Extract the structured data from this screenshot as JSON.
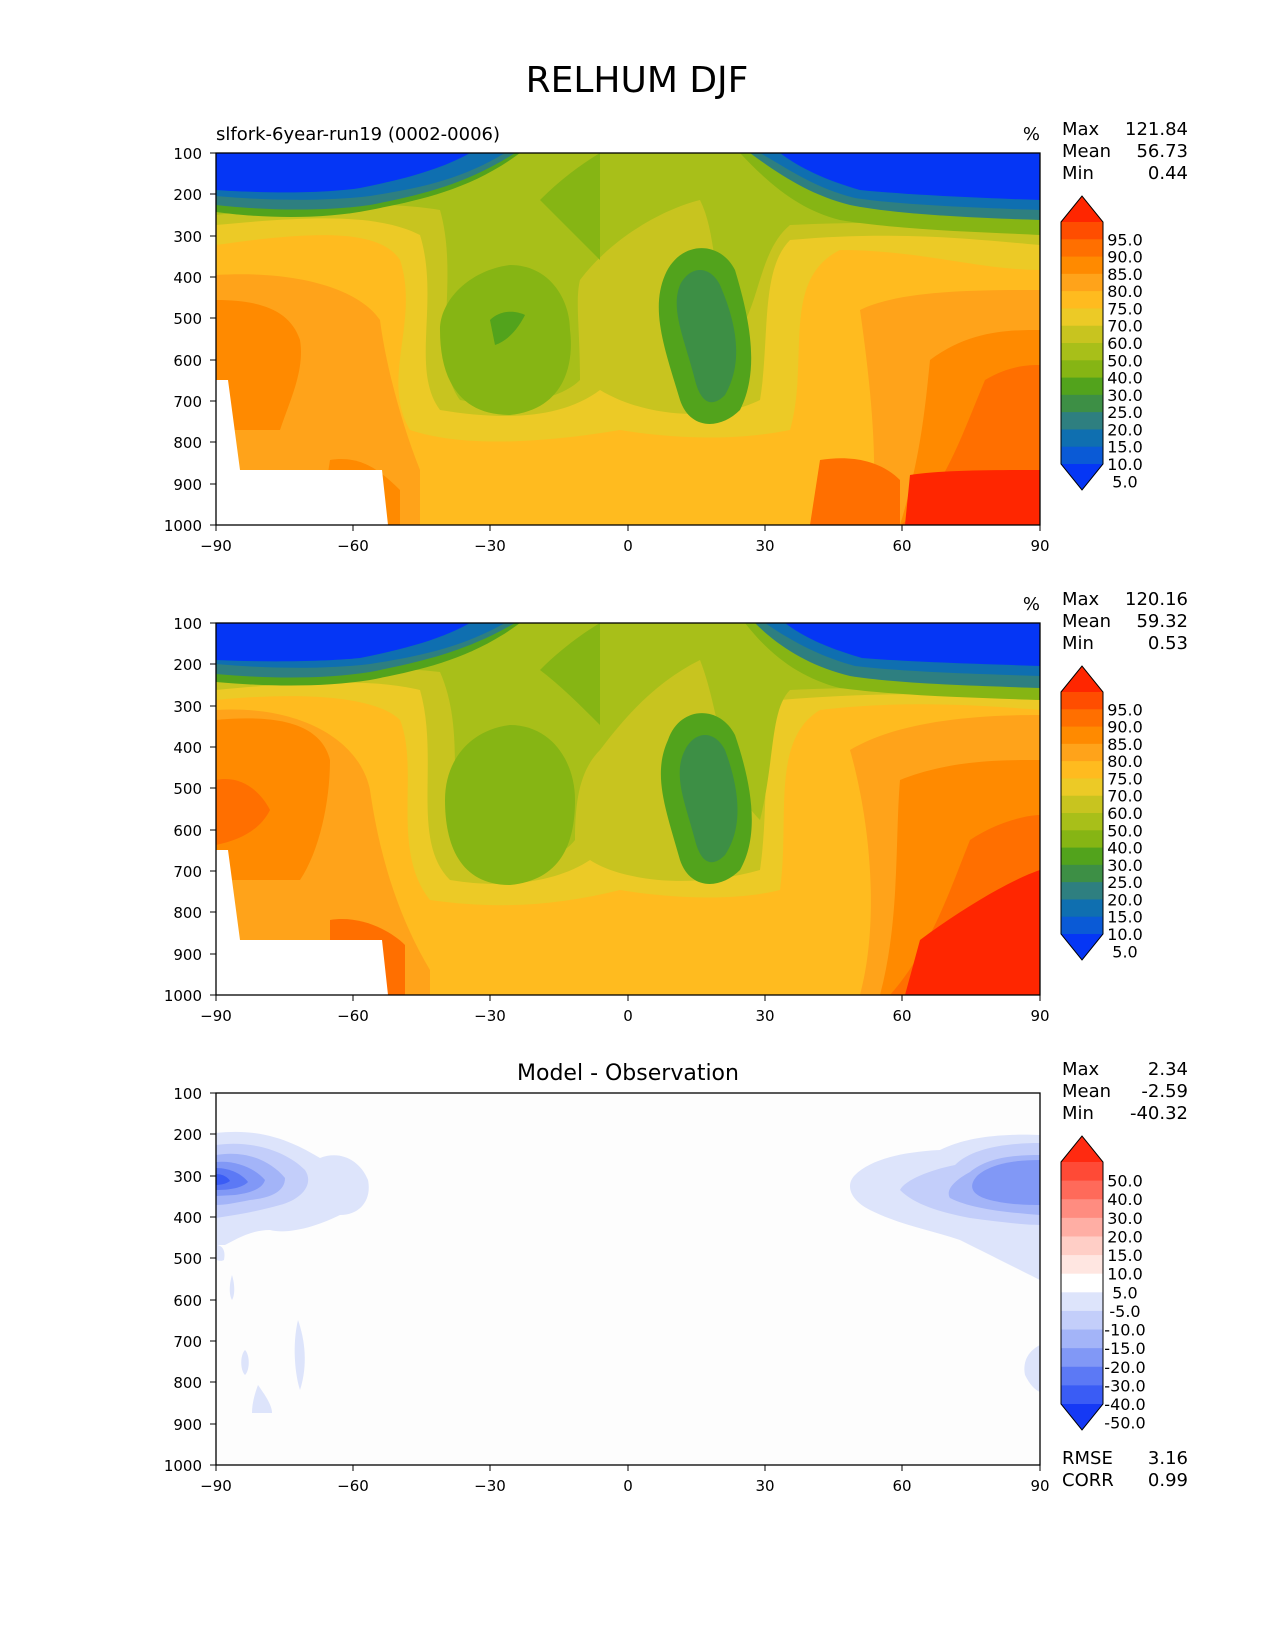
{
  "figure": {
    "title": "RELHUM DJF"
  },
  "chart_data": [
    {
      "type": "heatmap",
      "name": "model",
      "title": "slfork-6year-run19 (0002-0006)",
      "units": "%",
      "stats": [
        {
          "label": "Max",
          "value": "121.84"
        },
        {
          "label": "Mean",
          "value": "56.73"
        },
        {
          "label": "Min",
          "value": "0.44"
        }
      ],
      "x_ticks": [
        "−90",
        "−60",
        "−30",
        "0",
        "30",
        "60",
        "90"
      ],
      "y_ticks": [
        "100",
        "200",
        "300",
        "400",
        "500",
        "600",
        "700",
        "800",
        "900",
        "1000"
      ],
      "xlim": [
        -90,
        90
      ],
      "ylim": [
        1000,
        100
      ],
      "colorbar_levels": [
        "95.0",
        "90.0",
        "85.0",
        "80.0",
        "75.0",
        "70.0",
        "60.0",
        "50.0",
        "40.0",
        "30.0",
        "25.0",
        "20.0",
        "15.0",
        "10.0",
        "5.0"
      ],
      "colorbar_colors": [
        "#ff2600",
        "#ff4d00",
        "#ff6f00",
        "#ff8a00",
        "#ffa31a",
        "#ffbb1f",
        "#ecca26",
        "#c8c41f",
        "#a8bf19",
        "#86b514",
        "#52a31c",
        "#3d8f45",
        "#2e7f80",
        "#0f6fb0",
        "#0a5ad6",
        "#0536f5"
      ]
    },
    {
      "type": "heatmap",
      "name": "observation",
      "title": "",
      "units": "%",
      "stats": [
        {
          "label": "Max",
          "value": "120.16"
        },
        {
          "label": "Mean",
          "value": "59.32"
        },
        {
          "label": "Min",
          "value": "0.53"
        }
      ],
      "x_ticks": [
        "−90",
        "−60",
        "−30",
        "0",
        "30",
        "60",
        "90"
      ],
      "y_ticks": [
        "100",
        "200",
        "300",
        "400",
        "500",
        "600",
        "700",
        "800",
        "900",
        "1000"
      ],
      "xlim": [
        -90,
        90
      ],
      "ylim": [
        1000,
        100
      ],
      "colorbar_levels": [
        "95.0",
        "90.0",
        "85.0",
        "80.0",
        "75.0",
        "70.0",
        "60.0",
        "50.0",
        "40.0",
        "30.0",
        "25.0",
        "20.0",
        "15.0",
        "10.0",
        "5.0"
      ],
      "colorbar_colors": [
        "#ff2600",
        "#ff4d00",
        "#ff6f00",
        "#ff8a00",
        "#ffa31a",
        "#ffbb1f",
        "#ecca26",
        "#c8c41f",
        "#a8bf19",
        "#86b514",
        "#52a31c",
        "#3d8f45",
        "#2e7f80",
        "#0f6fb0",
        "#0a5ad6",
        "#0536f5"
      ]
    },
    {
      "type": "heatmap",
      "name": "difference",
      "title": "Model - Observation",
      "units": "",
      "stats": [
        {
          "label": "Max",
          "value": "2.34"
        },
        {
          "label": "Mean",
          "value": "-2.59"
        },
        {
          "label": "Min",
          "value": "-40.32"
        }
      ],
      "extra_stats": [
        {
          "label": "RMSE",
          "value": "3.16"
        },
        {
          "label": "CORR",
          "value": "0.99"
        }
      ],
      "x_ticks": [
        "−90",
        "−60",
        "−30",
        "0",
        "30",
        "60",
        "90"
      ],
      "y_ticks": [
        "100",
        "200",
        "300",
        "400",
        "500",
        "600",
        "700",
        "800",
        "900",
        "1000"
      ],
      "xlim": [
        -90,
        90
      ],
      "ylim": [
        1000,
        100
      ],
      "colorbar_levels": [
        "50.0",
        "40.0",
        "30.0",
        "20.0",
        "15.0",
        "10.0",
        "5.0",
        "-5.0",
        "-10.0",
        "-15.0",
        "-20.0",
        "-30.0",
        "-40.0",
        "-50.0"
      ],
      "colorbar_colors": [
        "#ff2a10",
        "#ff4a36",
        "#ff6a5a",
        "#ff8c80",
        "#ffaea4",
        "#ffcec6",
        "#ffe6e1",
        "#ffffff",
        "#dde4fb",
        "#c3cefa",
        "#a3b4f8",
        "#8198f6",
        "#5c79f5",
        "#3a5cf5",
        "#1539f5"
      ]
    }
  ]
}
